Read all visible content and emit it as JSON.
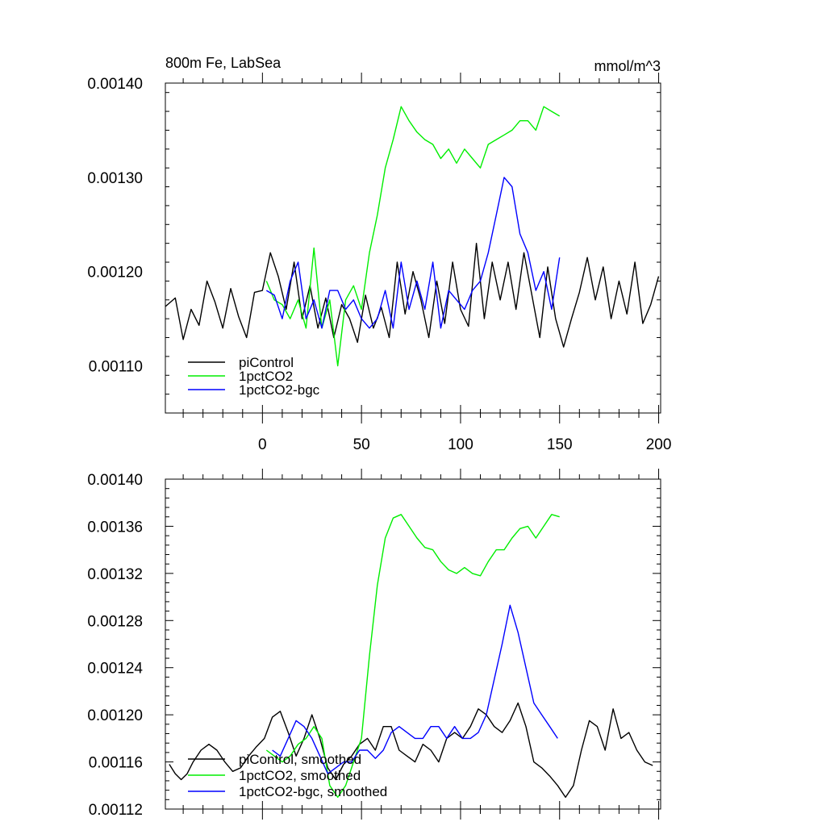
{
  "colors": {
    "piControl": "#000000",
    "1pctCO2": "#00ee00",
    "1pctCO2-bgc": "#0000ff"
  },
  "chart_data": [
    {
      "type": "line",
      "title_left": "800m Fe, LabSea",
      "title_right": "mmol/m^3",
      "xlabel": "",
      "ylabel": "",
      "xlim": [
        -49,
        201
      ],
      "ylim": [
        0.00105,
        0.0014
      ],
      "grid": false,
      "legend_position": "bottom-left",
      "yticks": [
        0.0011,
        0.0012,
        0.0013,
        0.0014
      ],
      "ytick_labels": [
        "0.00110",
        "0.00120",
        "0.00130",
        "0.00140"
      ],
      "xticks": [
        0,
        50,
        100,
        150,
        200
      ],
      "xtick_labels": [
        "0",
        "50",
        "100",
        "150",
        "200"
      ],
      "series": [
        {
          "name": "piControl",
          "color_key": "piControl",
          "x": [
            -49,
            -44,
            -40,
            -36,
            -32,
            -28,
            -24,
            -20,
            -16,
            -12,
            -8,
            -4,
            0,
            4,
            8,
            12,
            16,
            20,
            24,
            28,
            32,
            36,
            40,
            44,
            48,
            52,
            56,
            60,
            64,
            68,
            72,
            76,
            80,
            84,
            88,
            92,
            96,
            100,
            104,
            108,
            112,
            116,
            120,
            124,
            128,
            132,
            136,
            140,
            144,
            148,
            152,
            156,
            160,
            164,
            168,
            172,
            176,
            180,
            184,
            188,
            192,
            196,
            200
          ],
          "values": [
            0.001163,
            0.001172,
            0.001128,
            0.00116,
            0.001143,
            0.00119,
            0.001168,
            0.00114,
            0.001182,
            0.001152,
            0.00113,
            0.001178,
            0.00118,
            0.00122,
            0.001195,
            0.00116,
            0.00121,
            0.00115,
            0.001185,
            0.00114,
            0.001172,
            0.00113,
            0.001165,
            0.00115,
            0.001125,
            0.001175,
            0.00114,
            0.001162,
            0.00113,
            0.00121,
            0.001155,
            0.0012,
            0.00117,
            0.00113,
            0.00119,
            0.001145,
            0.00121,
            0.00116,
            0.001142,
            0.00123,
            0.00115,
            0.00121,
            0.00117,
            0.00121,
            0.00116,
            0.00122,
            0.001175,
            0.00113,
            0.001205,
            0.00115,
            0.00112,
            0.00115,
            0.001178,
            0.001215,
            0.00117,
            0.001205,
            0.00115,
            0.00119,
            0.001155,
            0.00121,
            0.001145,
            0.001165,
            0.001195
          ]
        },
        {
          "name": "1pctCO2",
          "color_key": "1pctCO2",
          "x": [
            2,
            6,
            10,
            14,
            18,
            22,
            26,
            30,
            34,
            38,
            42,
            46,
            50,
            54,
            58,
            62,
            66,
            70,
            74,
            78,
            82,
            86,
            90,
            94,
            98,
            102,
            106,
            110,
            114,
            118,
            122,
            126,
            130,
            134,
            138,
            142,
            146,
            150
          ],
          "values": [
            0.00119,
            0.00117,
            0.001165,
            0.00115,
            0.00117,
            0.00114,
            0.001225,
            0.00114,
            0.00117,
            0.0011,
            0.00117,
            0.001185,
            0.00116,
            0.00122,
            0.00126,
            0.00131,
            0.00134,
            0.001375,
            0.00136,
            0.001348,
            0.00134,
            0.001335,
            0.00132,
            0.00133,
            0.001315,
            0.00133,
            0.00132,
            0.00131,
            0.001335,
            0.00134,
            0.001345,
            0.00135,
            0.00136,
            0.00136,
            0.00135,
            0.001375,
            0.00137,
            0.001365
          ]
        },
        {
          "name": "1pctCO2-bgc",
          "color_key": "1pctCO2-bgc",
          "x": [
            2,
            6,
            10,
            14,
            18,
            22,
            26,
            30,
            34,
            38,
            42,
            46,
            50,
            54,
            58,
            62,
            66,
            70,
            74,
            78,
            82,
            86,
            90,
            94,
            98,
            102,
            106,
            110,
            114,
            118,
            122,
            126,
            130,
            134,
            138,
            142,
            146,
            150
          ],
          "values": [
            0.00118,
            0.001175,
            0.00115,
            0.00119,
            0.00121,
            0.00115,
            0.00117,
            0.00114,
            0.00118,
            0.00118,
            0.00116,
            0.00117,
            0.00115,
            0.00114,
            0.00115,
            0.00118,
            0.00114,
            0.00121,
            0.00116,
            0.00119,
            0.00116,
            0.00121,
            0.00114,
            0.00118,
            0.00117,
            0.00116,
            0.00118,
            0.00119,
            0.00122,
            0.00126,
            0.0013,
            0.00129,
            0.00124,
            0.00122,
            0.00118,
            0.0012,
            0.00116,
            0.001215
          ]
        }
      ],
      "legend": [
        "piControl",
        "1pctCO2",
        "1pctCO2-bgc"
      ]
    },
    {
      "type": "line",
      "title_left": "",
      "title_right": "",
      "xlabel": "",
      "ylabel": "",
      "xlim": [
        -49,
        201
      ],
      "ylim": [
        0.00112,
        0.0014
      ],
      "grid": false,
      "legend_position": "bottom-left",
      "yticks": [
        0.00112,
        0.00116,
        0.0012,
        0.00124,
        0.00128,
        0.00132,
        0.00136,
        0.0014
      ],
      "ytick_labels": [
        "0.00112",
        "0.00116",
        "0.00120",
        "0.00124",
        "0.00128",
        "0.00132",
        "0.00136",
        "0.00140"
      ],
      "xticks": [
        0,
        50,
        100,
        150,
        200
      ],
      "xtick_labels": [],
      "series": [
        {
          "name": "piControl, smoothed",
          "color_key": "piControl",
          "x": [
            -47,
            -44,
            -41,
            -38,
            -35,
            -31,
            -27,
            -23,
            -19,
            -15,
            -11,
            -7,
            -3,
            1,
            5,
            9,
            13,
            17,
            21,
            25,
            29,
            33,
            37,
            41,
            45,
            49,
            53,
            57,
            61,
            65,
            69,
            73,
            77,
            81,
            85,
            89,
            93,
            97,
            101,
            105,
            109,
            113,
            117,
            121,
            125,
            129,
            133,
            137,
            141,
            145,
            149,
            153,
            157,
            161,
            165,
            169,
            173,
            177,
            181,
            185,
            189,
            193,
            197
          ],
          "values": [
            0.001158,
            0.00115,
            0.001145,
            0.00115,
            0.00116,
            0.00117,
            0.001175,
            0.00117,
            0.00116,
            0.001152,
            0.001155,
            0.001165,
            0.001173,
            0.00118,
            0.001198,
            0.001203,
            0.001185,
            0.001165,
            0.00118,
            0.0012,
            0.00118,
            0.001155,
            0.001145,
            0.001158,
            0.001165,
            0.001175,
            0.00118,
            0.00117,
            0.00119,
            0.00119,
            0.00117,
            0.001165,
            0.00116,
            0.001175,
            0.00117,
            0.00116,
            0.00118,
            0.001185,
            0.00118,
            0.00119,
            0.001205,
            0.0012,
            0.00119,
            0.001185,
            0.001195,
            0.00121,
            0.00119,
            0.00116,
            0.001155,
            0.001148,
            0.00114,
            0.00113,
            0.00114,
            0.00117,
            0.001195,
            0.00119,
            0.00117,
            0.001205,
            0.00118,
            0.001185,
            0.00117,
            0.00116,
            0.001157
          ]
        },
        {
          "name": "1pctCO2, smoothed",
          "color_key": "1pctCO2",
          "x": [
            2,
            6,
            10,
            14,
            18,
            22,
            26,
            30,
            34,
            38,
            42,
            46,
            50,
            54,
            58,
            62,
            66,
            70,
            74,
            78,
            82,
            86,
            90,
            94,
            98,
            102,
            106,
            110,
            114,
            118,
            122,
            126,
            130,
            134,
            138,
            142,
            146,
            150
          ],
          "values": [
            0.00117,
            0.001165,
            0.00116,
            0.001165,
            0.001175,
            0.00118,
            0.00119,
            0.00118,
            0.00114,
            0.00113,
            0.00114,
            0.00116,
            0.00118,
            0.00125,
            0.00131,
            0.00135,
            0.001367,
            0.00137,
            0.00136,
            0.00135,
            0.001342,
            0.00134,
            0.00133,
            0.001323,
            0.00132,
            0.001325,
            0.00132,
            0.001318,
            0.00133,
            0.00134,
            0.00134,
            0.00135,
            0.001358,
            0.00136,
            0.00135,
            0.00136,
            0.00137,
            0.001368
          ]
        },
        {
          "name": "1pctCO2-bgc, smoothed",
          "color_key": "1pctCO2-bgc",
          "x": [
            5,
            9,
            13,
            17,
            21,
            25,
            29,
            33,
            37,
            41,
            45,
            49,
            53,
            57,
            61,
            65,
            69,
            73,
            77,
            81,
            85,
            89,
            93,
            97,
            101,
            105,
            109,
            113,
            117,
            121,
            125,
            129,
            133,
            137,
            141,
            145,
            149
          ],
          "values": [
            0.00117,
            0.001165,
            0.00118,
            0.001195,
            0.00119,
            0.00118,
            0.001165,
            0.00115,
            0.001155,
            0.00116,
            0.00116,
            0.00117,
            0.00117,
            0.001163,
            0.00117,
            0.001185,
            0.00119,
            0.001185,
            0.00118,
            0.00118,
            0.00119,
            0.00119,
            0.00118,
            0.00119,
            0.00118,
            0.00118,
            0.001185,
            0.0012,
            0.00123,
            0.00126,
            0.001293,
            0.00127,
            0.00124,
            0.00121,
            0.0012,
            0.00119,
            0.00118
          ]
        }
      ],
      "legend": [
        "piControl, smoothed",
        "1pctCO2, smoothed",
        "1pctCO2-bgc, smoothed"
      ]
    }
  ]
}
